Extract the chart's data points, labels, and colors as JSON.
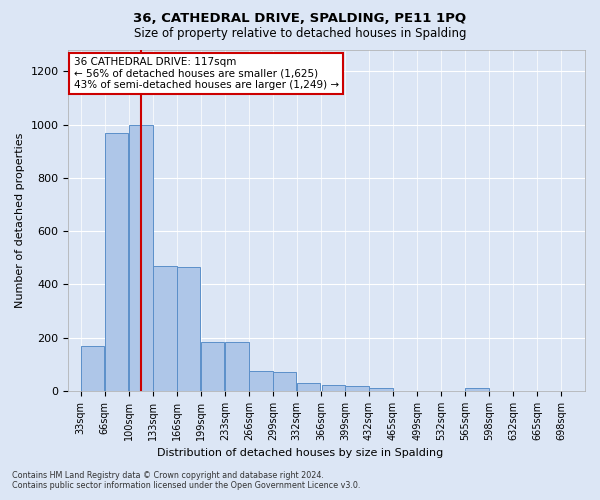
{
  "title1": "36, CATHEDRAL DRIVE, SPALDING, PE11 1PQ",
  "title2": "Size of property relative to detached houses in Spalding",
  "xlabel": "Distribution of detached houses by size in Spalding",
  "ylabel": "Number of detached properties",
  "footnote1": "Contains HM Land Registry data © Crown copyright and database right 2024.",
  "footnote2": "Contains public sector information licensed under the Open Government Licence v3.0.",
  "annotation_line1": "36 CATHEDRAL DRIVE: 117sqm",
  "annotation_line2": "← 56% of detached houses are smaller (1,625)",
  "annotation_line3": "43% of semi-detached houses are larger (1,249) →",
  "property_size": 117,
  "categories": [
    "33sqm",
    "66sqm",
    "100sqm",
    "133sqm",
    "166sqm",
    "199sqm",
    "233sqm",
    "266sqm",
    "299sqm",
    "332sqm",
    "366sqm",
    "399sqm",
    "432sqm",
    "465sqm",
    "499sqm",
    "532sqm",
    "565sqm",
    "598sqm",
    "632sqm",
    "665sqm",
    "698sqm"
  ],
  "bin_starts": [
    33,
    66,
    100,
    133,
    166,
    199,
    233,
    266,
    299,
    332,
    366,
    399,
    432,
    465,
    499,
    532,
    565,
    598,
    632,
    665,
    698
  ],
  "bin_width": 33,
  "values": [
    170,
    968,
    1000,
    470,
    465,
    185,
    185,
    75,
    70,
    28,
    22,
    18,
    10,
    0,
    0,
    0,
    10,
    0,
    0,
    0,
    0
  ],
  "bar_color": "#aec6e8",
  "bar_edge_color": "#5b8fc9",
  "vline_color": "#cc0000",
  "annotation_box_color": "#cc0000",
  "bg_color": "#dce6f5",
  "grid_color": "#ffffff",
  "ylim": [
    0,
    1280
  ],
  "yticks": [
    0,
    200,
    400,
    600,
    800,
    1000,
    1200
  ]
}
